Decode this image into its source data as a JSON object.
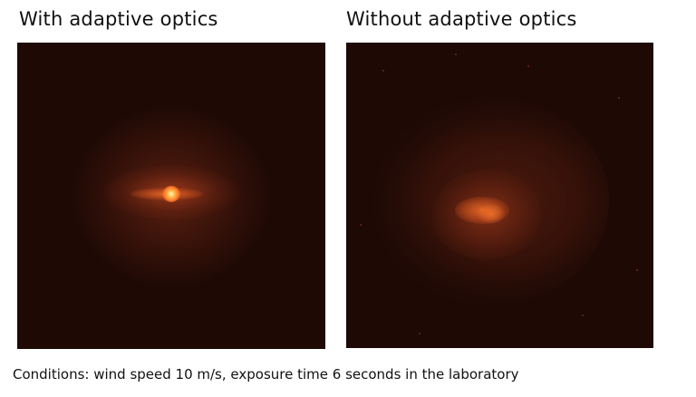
{
  "panels": [
    {
      "title": "With adaptive optics"
    },
    {
      "title": "Without adaptive optics"
    }
  ],
  "caption": "Conditions: wind speed 10 m/s, exposure time 6 seconds in the laboratory",
  "colors": {
    "background": "#1e0905",
    "glow": "#ff7a2a",
    "core": "#fff2b0"
  }
}
